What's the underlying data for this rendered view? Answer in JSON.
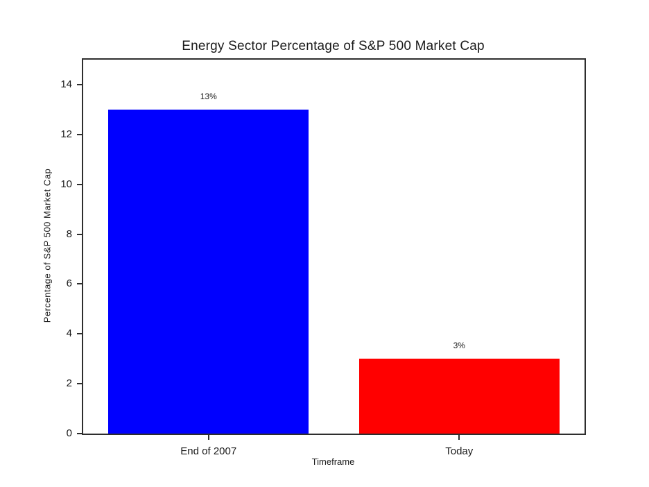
{
  "chart_data": {
    "type": "bar",
    "title": "Energy Sector Percentage of S&P 500 Market Cap",
    "xlabel": "Timeframe",
    "ylabel": "Percentage of S&P 500 Market Cap",
    "categories": [
      "End of 2007",
      "Today"
    ],
    "values": [
      13,
      3
    ],
    "bar_labels": [
      "13%",
      "3%"
    ],
    "bar_colors": [
      "#0000ff",
      "#ff0000"
    ],
    "ylim": [
      0,
      15
    ],
    "yticks": [
      0,
      2,
      4,
      6,
      8,
      10,
      12,
      14
    ],
    "bar_width_fraction": 0.8,
    "grid": false,
    "legend_position": "none",
    "background_color": "#ffffff",
    "axis_color": "#2e2e2e",
    "text_color": "#1a1a1a"
  }
}
